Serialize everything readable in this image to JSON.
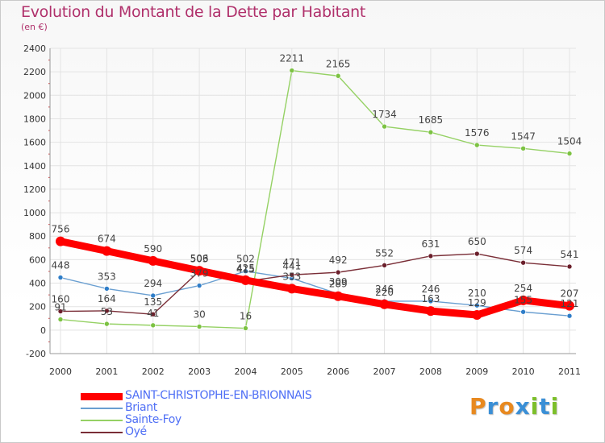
{
  "title": "Evolution du Montant de la Dette par Habitant",
  "unit_label": "(en €)",
  "logo": {
    "letters": [
      "P",
      "r",
      "o",
      "x",
      "i",
      "t",
      "i"
    ],
    "colors": [
      "#e8891f",
      "#3a8fd6",
      "#e8891f",
      "#3a8fd6",
      "#7cbf2a",
      "#3a8fd6",
      "#7cbf2a"
    ]
  },
  "chart_data": {
    "type": "line",
    "x": [
      "2000",
      "2001",
      "2002",
      "2003",
      "2004",
      "2005",
      "2006",
      "2007",
      "2008",
      "2009",
      "2010",
      "2011"
    ],
    "ylim": [
      -200,
      2400
    ],
    "yticks": [
      "-200",
      "0",
      "200",
      "400",
      "600",
      "800",
      "1000",
      "1200",
      "1400",
      "1600",
      "1800",
      "2000",
      "2200",
      "2400"
    ],
    "grid": true,
    "legend_position": "bottom-left",
    "series": [
      {
        "name": "SAINT-CHRISTOPHE-EN-BRIONNAIS",
        "color": "#ff0000",
        "marker_color": "#ff0000",
        "legend_color": "#4f6ff5",
        "values": [
          756,
          674,
          590,
          506,
          425,
          353,
          289,
          220,
          163,
          129,
          254,
          207
        ],
        "labels": [
          "756",
          "674",
          "590",
          "506",
          "425",
          "353",
          "289",
          "220",
          "163",
          "129",
          "254",
          "207"
        ]
      },
      {
        "name": "Briant",
        "color": "#6a9fd1",
        "marker_color": "#2e7dc8",
        "legend_color": "#4f6ff5",
        "values": [
          448,
          353,
          294,
          379,
          502,
          441,
          309,
          246,
          246,
          210,
          155,
          121
        ],
        "labels": [
          "448",
          "353",
          "294",
          "379",
          "502",
          "441",
          "309",
          "246",
          "246",
          "210",
          "155",
          "121"
        ]
      },
      {
        "name": "Sainte-Foy",
        "color": "#95d164",
        "marker_color": "#7cc242",
        "legend_color": "#4f6ff5",
        "values": [
          91,
          53,
          41,
          30,
          16,
          2211,
          2165,
          1734,
          1685,
          1576,
          1547,
          1504
        ],
        "labels": [
          "91",
          "53",
          "41",
          "30",
          "16",
          "2211",
          "2165",
          "1734",
          "1685",
          "1576",
          "1547",
          "1504"
        ]
      },
      {
        "name": "Oyé",
        "color": "#7a2e37",
        "marker_color": "#6b1f2b",
        "legend_color": "#4f6ff5",
        "values": [
          160,
          164,
          135,
          503,
          415,
          471,
          492,
          552,
          631,
          650,
          574,
          541
        ],
        "labels": [
          "160",
          "164",
          "135",
          "503",
          "415",
          "471",
          "492",
          "552",
          "631",
          "650",
          "574",
          "541"
        ]
      }
    ]
  }
}
